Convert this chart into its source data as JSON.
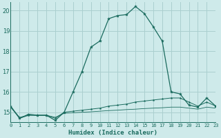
{
  "xlabel": "Humidex (Indice chaleur)",
  "background_color": "#ceeaea",
  "grid_color": "#aacfcf",
  "line_color": "#1a6b5e",
  "x_values": [
    0,
    1,
    2,
    3,
    4,
    5,
    6,
    7,
    8,
    9,
    10,
    11,
    12,
    13,
    14,
    15,
    16,
    17,
    18,
    19,
    20,
    21,
    22,
    23
  ],
  "series1": [
    15.3,
    14.7,
    14.9,
    14.85,
    14.85,
    14.6,
    15.0,
    16.0,
    17.0,
    18.2,
    18.5,
    19.6,
    19.75,
    19.8,
    20.2,
    19.85,
    19.2,
    18.5,
    16.0,
    15.9,
    15.35,
    15.25,
    15.7,
    15.3
  ],
  "series2": [
    15.25,
    14.7,
    14.85,
    14.85,
    14.85,
    14.7,
    15.0,
    15.05,
    15.1,
    15.15,
    15.2,
    15.3,
    15.35,
    15.4,
    15.5,
    15.55,
    15.6,
    15.65,
    15.7,
    15.7,
    15.5,
    15.3,
    15.5,
    15.3
  ],
  "series3": [
    15.25,
    14.75,
    14.85,
    14.85,
    14.85,
    14.75,
    14.95,
    14.97,
    15.0,
    15.02,
    15.05,
    15.08,
    15.1,
    15.13,
    15.15,
    15.18,
    15.2,
    15.22,
    15.25,
    15.25,
    15.2,
    15.15,
    15.25,
    15.2
  ],
  "xlim": [
    0,
    23
  ],
  "ylim": [
    14.5,
    20.4
  ],
  "yticks": [
    15,
    16,
    17,
    18,
    19,
    20
  ],
  "xtick_labels": [
    "0",
    "1",
    "2",
    "3",
    "4",
    "5",
    "6",
    "7",
    "8",
    "9",
    "10",
    "11",
    "12",
    "13",
    "14",
    "15",
    "16",
    "17",
    "18",
    "19",
    "20",
    "21",
    "22",
    "23"
  ]
}
